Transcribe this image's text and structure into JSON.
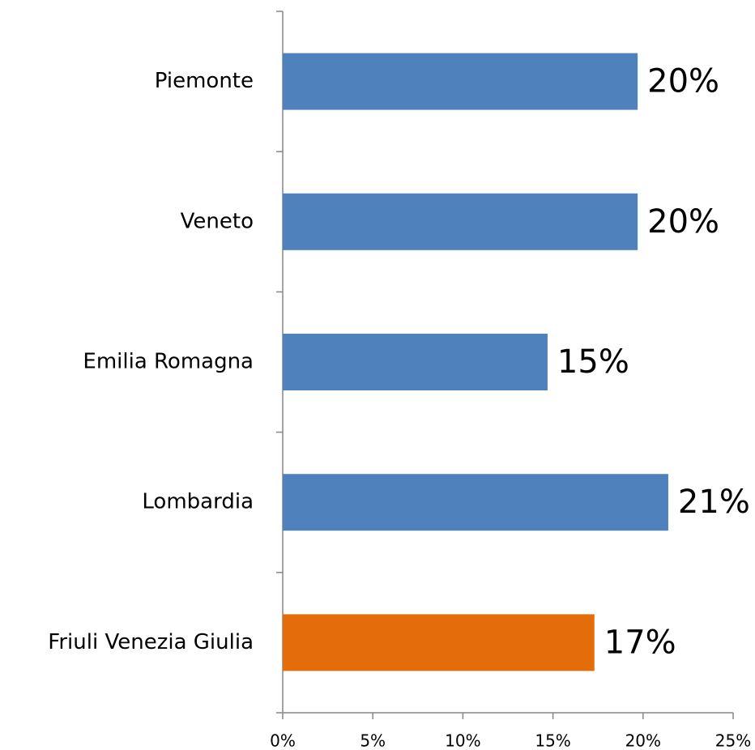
{
  "chart_data": {
    "type": "bar",
    "orientation": "horizontal",
    "categories": [
      "Piemonte",
      "Veneto",
      "Emilia Romagna",
      "Lombardia",
      "Friuli Venezia Giulia"
    ],
    "values": [
      19.7,
      19.7,
      14.7,
      21.4,
      17.3
    ],
    "value_labels": [
      "20%",
      "20%",
      "15%",
      "21%",
      "17%"
    ],
    "colors": [
      "#4f81bd",
      "#4f81bd",
      "#4f81bd",
      "#4f81bd",
      "#e46c0a"
    ],
    "xlim": [
      0,
      25
    ],
    "xticks": [
      {
        "value": 0,
        "label": "0%"
      },
      {
        "value": 5,
        "label": "5%"
      },
      {
        "value": 10,
        "label": "10%"
      },
      {
        "value": 15,
        "label": "15%"
      },
      {
        "value": 20,
        "label": "20%"
      },
      {
        "value": 25,
        "label": "25%"
      }
    ],
    "grid": false
  }
}
